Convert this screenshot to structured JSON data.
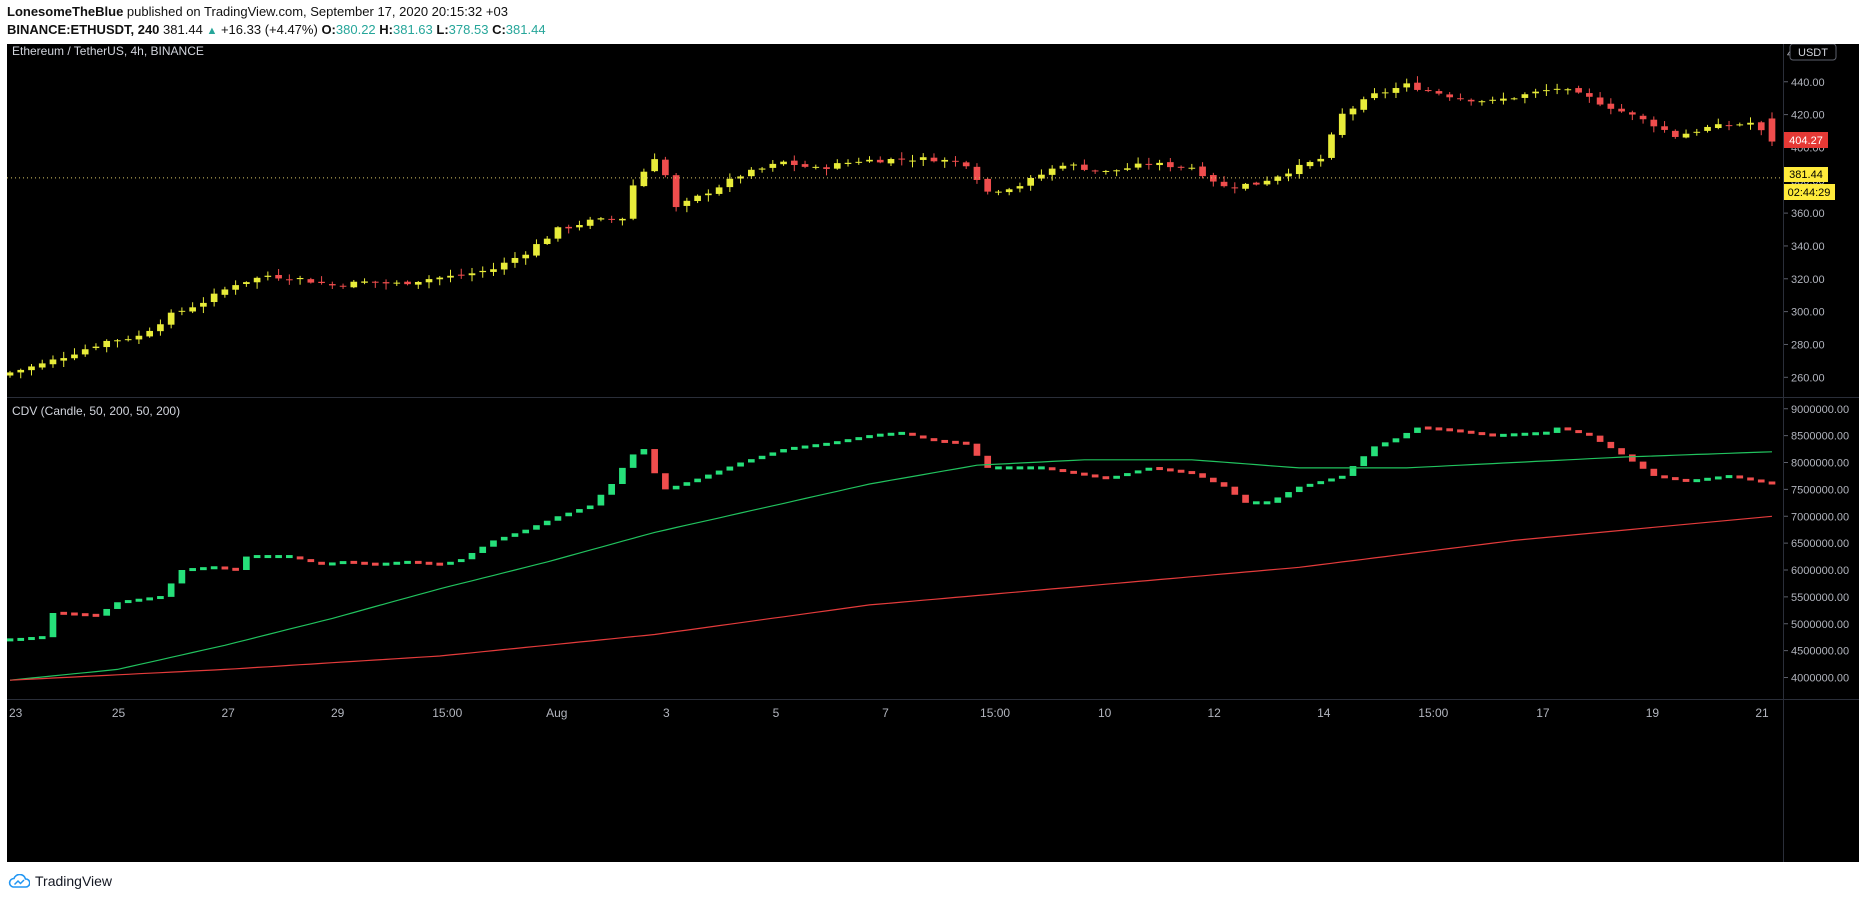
{
  "header": {
    "author": "LonesomeTheBlue",
    "published_text": "published on TradingView.com, September 17, 2020 20:15:32 +03",
    "symbol_interval": "BINANCE:ETHUSDT, 240",
    "last": "381.44",
    "change": "+16.33 (+4.47%)",
    "o_label": "O:",
    "o_value": "380.22",
    "h_label": "H:",
    "h_value": "381.63",
    "l_label": "L:",
    "l_value": "378.53",
    "c_label": "C:",
    "c_value": "381.44"
  },
  "price_pane": {
    "title": "Ethereum / TetherUS, 4h, BINANCE",
    "currency_badge": "USDT",
    "top_tick_fragment": "46",
    "current_price_tag": "404.27",
    "last_close_tag": "381.44",
    "countdown_tag": "02:44:29"
  },
  "indicator_pane": {
    "title": "CDV (Candle, 50, 200, 50, 200)"
  },
  "footer": {
    "brand": "TradingView"
  },
  "colors": {
    "background": "#000000",
    "bull_candle": "#e8ec3a",
    "bear_candle": "#ef4d4d",
    "cdv_up": "#26e07a",
    "cdv_down": "#ef4d4d",
    "ema_fast": "#21c25e",
    "ema_slow": "#e33b3b",
    "last_price_line": "#d7c56a"
  },
  "chart_data": [
    {
      "type": "candlestick",
      "title": "Ethereum / TetherUS, 4h, BINANCE",
      "x_tick_labels": [
        "23",
        "25",
        "27",
        "29",
        "15:00",
        "Aug",
        "3",
        "5",
        "7",
        "15:00",
        "10",
        "12",
        "14",
        "15:00",
        "17",
        "19",
        "21"
      ],
      "y_tick_labels": [
        "260.00",
        "280.00",
        "300.00",
        "320.00",
        "340.00",
        "360.00",
        "380.00",
        "400.00",
        "420.00",
        "440.00"
      ],
      "ylim": [
        248,
        463
      ],
      "last_close": 381.44,
      "current_price": 404.27,
      "close_path": [
        [
          0,
          263
        ],
        [
          3,
          268
        ],
        [
          6,
          275
        ],
        [
          9,
          282
        ],
        [
          12,
          285
        ],
        [
          15,
          298
        ],
        [
          18,
          306
        ],
        [
          21,
          317
        ],
        [
          24,
          322
        ],
        [
          27,
          320
        ],
        [
          30,
          316
        ],
        [
          33,
          318
        ],
        [
          36,
          317
        ],
        [
          39,
          320
        ],
        [
          42,
          322
        ],
        [
          45,
          326
        ],
        [
          48,
          336
        ],
        [
          51,
          350
        ],
        [
          54,
          355
        ],
        [
          57,
          357
        ],
        [
          58,
          377
        ],
        [
          60,
          394
        ],
        [
          61,
          383
        ],
        [
          62,
          363
        ],
        [
          65,
          373
        ],
        [
          68,
          383
        ],
        [
          72,
          391
        ],
        [
          75,
          387
        ],
        [
          79,
          392
        ],
        [
          84,
          393
        ],
        [
          86,
          393
        ],
        [
          89,
          390
        ],
        [
          91,
          373
        ],
        [
          94,
          377
        ],
        [
          98,
          390
        ],
        [
          102,
          385
        ],
        [
          106,
          390
        ],
        [
          110,
          388
        ],
        [
          113,
          376
        ],
        [
          116,
          378
        ],
        [
          120,
          388
        ],
        [
          122,
          393
        ],
        [
          124,
          420
        ],
        [
          127,
          432
        ],
        [
          130,
          438
        ],
        [
          135,
          430
        ],
        [
          138,
          428
        ],
        [
          141,
          432
        ],
        [
          144,
          436
        ],
        [
          147,
          430
        ],
        [
          150,
          422
        ],
        [
          153,
          414
        ],
        [
          155,
          407
        ],
        [
          158,
          412
        ],
        [
          162,
          415
        ],
        [
          164,
          404.27
        ]
      ],
      "candle_count": 165
    },
    {
      "type": "candlestick",
      "title": "CDV (Candle, 50, 200, 50, 200)",
      "series": [
        {
          "name": "50"
        },
        {
          "name": "200"
        }
      ],
      "y_tick_labels": [
        "4000000.00",
        "4500000.00",
        "5000000.00",
        "5500000.00",
        "6000000.00",
        "6500000.00",
        "7000000.00",
        "7500000.00",
        "8000000.00",
        "8500000.00",
        "9000000.00"
      ],
      "ylim": [
        3600000,
        9200000
      ],
      "cdv_path": [
        [
          0,
          4700000
        ],
        [
          3,
          4750000
        ],
        [
          4,
          5200000
        ],
        [
          8,
          5150000
        ],
        [
          10,
          5400000
        ],
        [
          14,
          5500000
        ],
        [
          16,
          6000000
        ],
        [
          19,
          6050000
        ],
        [
          21,
          6000000
        ],
        [
          22,
          6250000
        ],
        [
          26,
          6250000
        ],
        [
          29,
          6100000
        ],
        [
          31,
          6150000
        ],
        [
          34,
          6100000
        ],
        [
          37,
          6150000
        ],
        [
          40,
          6100000
        ],
        [
          42,
          6200000
        ],
        [
          45,
          6550000
        ],
        [
          48,
          6750000
        ],
        [
          51,
          7000000
        ],
        [
          54,
          7200000
        ],
        [
          56,
          7600000
        ],
        [
          57,
          7900000
        ],
        [
          58,
          8150000
        ],
        [
          59,
          8250000
        ],
        [
          60,
          7800000
        ],
        [
          61,
          7500000
        ],
        [
          64,
          7700000
        ],
        [
          68,
          8000000
        ],
        [
          72,
          8250000
        ],
        [
          76,
          8350000
        ],
        [
          80,
          8500000
        ],
        [
          83,
          8550000
        ],
        [
          86,
          8400000
        ],
        [
          89,
          8350000
        ],
        [
          91,
          7900000
        ],
        [
          96,
          7900000
        ],
        [
          102,
          7700000
        ],
        [
          106,
          7900000
        ],
        [
          110,
          7800000
        ],
        [
          113,
          7550000
        ],
        [
          115,
          7250000
        ],
        [
          117,
          7250000
        ],
        [
          120,
          7550000
        ],
        [
          124,
          7750000
        ],
        [
          127,
          8300000
        ],
        [
          129,
          8450000
        ],
        [
          131,
          8650000
        ],
        [
          134,
          8600000
        ],
        [
          138,
          8500000
        ],
        [
          143,
          8550000
        ],
        [
          144,
          8650000
        ],
        [
          147,
          8500000
        ],
        [
          150,
          8150000
        ],
        [
          153,
          7750000
        ],
        [
          156,
          7650000
        ],
        [
          160,
          7750000
        ],
        [
          164,
          7600000
        ]
      ],
      "ema_fast_path": [
        [
          0,
          3950000
        ],
        [
          10,
          4150000
        ],
        [
          20,
          4600000
        ],
        [
          30,
          5100000
        ],
        [
          40,
          5650000
        ],
        [
          50,
          6150000
        ],
        [
          60,
          6700000
        ],
        [
          70,
          7150000
        ],
        [
          80,
          7600000
        ],
        [
          90,
          7950000
        ],
        [
          100,
          8050000
        ],
        [
          110,
          8050000
        ],
        [
          120,
          7900000
        ],
        [
          130,
          7900000
        ],
        [
          140,
          8000000
        ],
        [
          150,
          8100000
        ],
        [
          164,
          8200000
        ]
      ],
      "ema_slow_path": [
        [
          0,
          3950000
        ],
        [
          20,
          4150000
        ],
        [
          40,
          4400000
        ],
        [
          60,
          4800000
        ],
        [
          80,
          5350000
        ],
        [
          100,
          5700000
        ],
        [
          120,
          6050000
        ],
        [
          140,
          6550000
        ],
        [
          164,
          7000000
        ]
      ]
    }
  ]
}
